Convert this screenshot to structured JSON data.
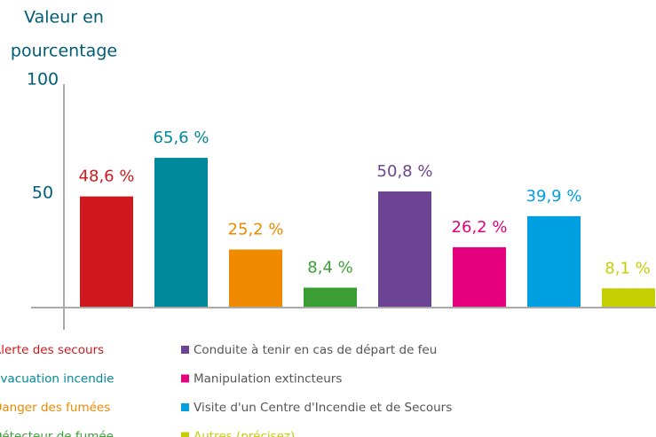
{
  "chart_data": {
    "type": "bar",
    "y_label": [
      "Valeur en",
      "pourcentage"
    ],
    "categories": [
      "Alerte des secours",
      "Évacuation incendie",
      "Danger des fumées",
      "Détecteur de fumée",
      "Conduite à tenir en cas de départ de feu",
      "Manipulation extincteurs",
      "Visite d'un Centre d'Incendie et de Secours",
      "Autres (précisez)"
    ],
    "values": [
      48.6,
      65.6,
      25.2,
      8.4,
      50.8,
      26.2,
      39.9,
      8.1
    ],
    "value_labels": [
      "48,6 %",
      "65,6 %",
      "25,2 %",
      "8,4 %",
      "50,8 %",
      "26,2 %",
      "39,9 %",
      "8,1 %"
    ],
    "colors": [
      "#d0191e",
      "#00899a",
      "#f08a00",
      "#3a9e35",
      "#6d4393",
      "#e5007d",
      "#009fe0",
      "#c5cf00"
    ],
    "legend_text_colors": [
      "#d0191e",
      "#00899a",
      "#f08a00",
      "#3a9e35",
      "#555555",
      "#555555",
      "#555555",
      "#c5cf00"
    ],
    "ylim": [
      0,
      100
    ],
    "yticks": [
      50,
      100
    ],
    "grid": false
  }
}
